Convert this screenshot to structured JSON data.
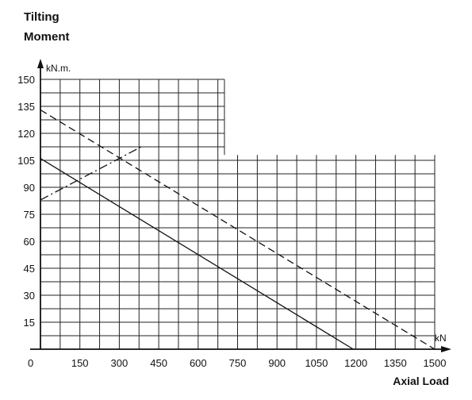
{
  "chart_data": {
    "type": "line",
    "title": [
      "Tilting",
      "Moment"
    ],
    "xlabel": "Axial Load",
    "ylabel_unit": "kN.m.",
    "xlabel_unit": "kN",
    "origin_label": "0",
    "xlim": [
      0,
      1500
    ],
    "ylim": [
      0,
      150
    ],
    "x_ticks": [
      "150",
      "300",
      "450",
      "600",
      "750",
      "900",
      "1050",
      "1200",
      "1350",
      "1500"
    ],
    "y_ticks": [
      "15",
      "30",
      "45",
      "60",
      "75",
      "90",
      "105",
      "120",
      "135",
      "150"
    ],
    "grid": true,
    "grid_step": {
      "x": 75,
      "y": 7.5
    },
    "grid_upper_extent": {
      "x_max": 700,
      "y_max": 150
    },
    "grid_lower_extent": {
      "x_max": 1500,
      "y_max": 108
    },
    "series": [
      {
        "style": "solid",
        "points": [
          [
            0,
            106
          ],
          [
            1190,
            0
          ]
        ]
      },
      {
        "style": "dashed",
        "points": [
          [
            0,
            133
          ],
          [
            1500,
            0
          ]
        ]
      },
      {
        "style": "dash-dot",
        "points": [
          [
            0,
            83
          ],
          [
            390,
            113
          ]
        ]
      }
    ]
  }
}
